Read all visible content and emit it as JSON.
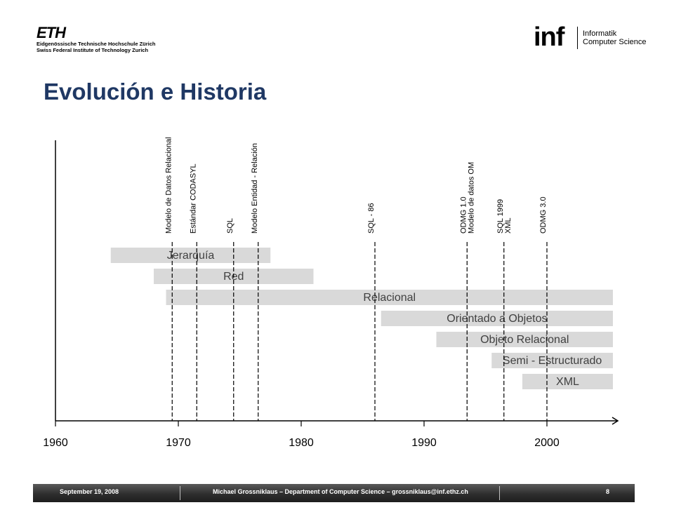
{
  "header": {
    "eth_logo_mark": "ETH",
    "eth_line1": "Eidgenössische Technische Hochschule Zürich",
    "eth_line2": "Swiss Federal Institute of Technology Zurich",
    "inf_logo_mark": "inf",
    "inf_line1": "Informatik",
    "inf_line2": "Computer Science"
  },
  "title": "Evolución e Historia",
  "diagram": {
    "axis_years": [
      "1960",
      "1970",
      "1980",
      "1990",
      "2000"
    ],
    "events": [
      {
        "label": "Modelo de Datos Relacional",
        "year": 1969.5
      },
      {
        "label": "Estándar CODASYL",
        "year": 1971.5
      },
      {
        "label": "SQL",
        "year": 1974.5
      },
      {
        "label": "Modelo  Entidad - Relación",
        "year": 1976.5
      },
      {
        "label": "SQL - 86",
        "year": 1986
      },
      {
        "label": "ODMG 1.0",
        "year": 1993.5
      },
      {
        "label": "Modelo de datos OM",
        "year": 1993.5
      },
      {
        "label": "SQL 1999",
        "year": 1996.5
      },
      {
        "label": "XML",
        "year": 1996.5
      },
      {
        "label": "ODMG 3.0",
        "year": 2000
      }
    ],
    "bars": [
      {
        "label": "Jerarquía",
        "start": 1964.5,
        "end": 1977.5
      },
      {
        "label": "Red",
        "start": 1968,
        "end": 1981
      },
      {
        "label": "Relacional",
        "start": 1969,
        "end": 2007
      },
      {
        "label": "Orientado a Objetos",
        "start": 1986.5,
        "end": 2007
      },
      {
        "label": "Objeto Relacional",
        "start": 1991,
        "end": 2007
      },
      {
        "label": "Semi - Estructurado",
        "start": 1995.5,
        "end": 2007
      },
      {
        "label": "XML",
        "start": 1998,
        "end": 2007
      }
    ]
  },
  "footer": {
    "date": "September 19, 2008",
    "author": "Michael Grossniklaus – Department of Computer Science – grossniklaus@inf.ethz.ch",
    "page": "8"
  },
  "colors": {
    "title": "#1f3864",
    "bar_fill": "#d9d9d9",
    "axis": "#000000"
  }
}
